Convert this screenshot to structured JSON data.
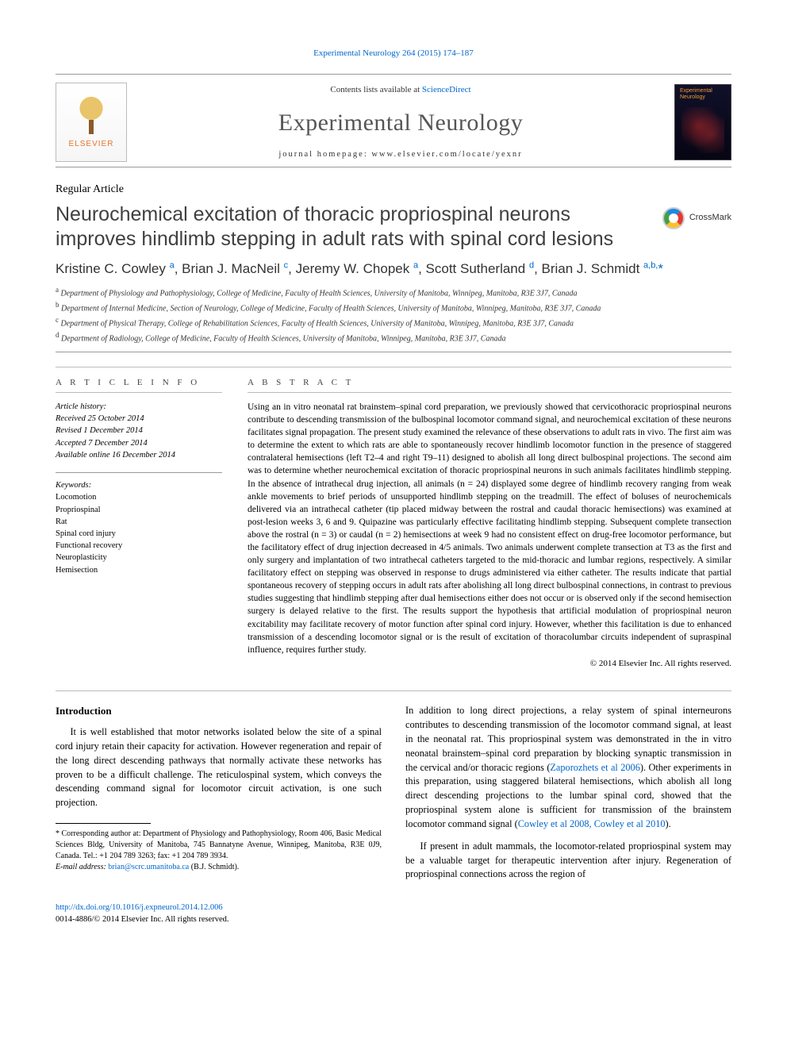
{
  "runningHead": {
    "journalLink": "Experimental Neurology 264 (2015) 174–187",
    "journalUrl": "#"
  },
  "masthead": {
    "publisherWord": "ELSEVIER",
    "contentsPrefix": "Contents lists available at ",
    "contentsLink": "ScienceDirect",
    "journalName": "Experimental Neurology",
    "homepagePrefix": "journal homepage: ",
    "homepageUrl": "www.elsevier.com/locate/yexnr",
    "coverTitle": "Experimental Neurology"
  },
  "articleType": "Regular Article",
  "title": "Neurochemical excitation of thoracic propriospinal neurons improves hindlimb stepping in adult rats with spinal cord lesions",
  "crossmarkLabel": "CrossMark",
  "authorsHtml": "Kristine C. Cowley <sup>a</sup>, Brian J. MacNeil <sup>c</sup>, Jeremy W. Chopek <sup>a</sup>, Scott Sutherland <sup>d</sup>, Brian J. Schmidt <sup>a,b,</sup><span class='star'>*</span>",
  "affiliations": {
    "a": "Department of Physiology and Pathophysiology, College of Medicine, Faculty of Health Sciences, University of Manitoba, Winnipeg, Manitoba, R3E 3J7, Canada",
    "b": "Department of Internal Medicine, Section of Neurology, College of Medicine, Faculty of Health Sciences, University of Manitoba, Winnipeg, Manitoba, R3E 3J7, Canada",
    "c": "Department of Physical Therapy, College of Rehabilitation Sciences, Faculty of Health Sciences, University of Manitoba, Winnipeg, Manitoba, R3E 3J7, Canada",
    "d": "Department of Radiology, College of Medicine, Faculty of Health Sciences, University of Manitoba, Winnipeg, Manitoba, R3E 3J7, Canada"
  },
  "articleInfo": {
    "headLeft": "A R T I C L E   I N F O",
    "historyLabel": "Article history:",
    "received": "Received 25 October 2014",
    "revised": "Revised 1 December 2014",
    "accepted": "Accepted 7 December 2014",
    "online": "Available online 16 December 2014",
    "keywordsLabel": "Keywords:",
    "keywords": [
      "Locomotion",
      "Propriospinal",
      "Rat",
      "Spinal cord injury",
      "Functional recovery",
      "Neuroplasticity",
      "Hemisection"
    ]
  },
  "abstract": {
    "head": "A B S T R A C T",
    "text": "Using an in vitro neonatal rat brainstem–spinal cord preparation, we previously showed that cervicothoracic propriospinal neurons contribute to descending transmission of the bulbospinal locomotor command signal, and neurochemical excitation of these neurons facilitates signal propagation. The present study examined the relevance of these observations to adult rats in vivo. The first aim was to determine the extent to which rats are able to spontaneously recover hindlimb locomotor function in the presence of staggered contralateral hemisections (left T2–4 and right T9–11) designed to abolish all long direct bulbospinal projections. The second aim was to determine whether neurochemical excitation of thoracic propriospinal neurons in such animals facilitates hindlimb stepping. In the absence of intrathecal drug injection, all animals (n = 24) displayed some degree of hindlimb recovery ranging from weak ankle movements to brief periods of unsupported hindlimb stepping on the treadmill. The effect of boluses of neurochemicals delivered via an intrathecal catheter (tip placed midway between the rostral and caudal thoracic hemisections) was examined at post-lesion weeks 3, 6 and 9. Quipazine was particularly effective facilitating hindlimb stepping. Subsequent complete transection above the rostral (n = 3) or caudal (n = 2) hemisections at week 9 had no consistent effect on drug-free locomotor performance, but the facilitatory effect of drug injection decreased in 4/5 animals. Two animals underwent complete transection at T3 as the first and only surgery and implantation of two intrathecal catheters targeted to the mid-thoracic and lumbar regions, respectively. A similar facilitatory effect on stepping was observed in response to drugs administered via either catheter. The results indicate that partial spontaneous recovery of stepping occurs in adult rats after abolishing all long direct bulbospinal connections, in contrast to previous studies suggesting that hindlimb stepping after dual hemisections either does not occur or is observed only if the second hemisection surgery is delayed relative to the first. The results support the hypothesis that artificial modulation of propriospinal neuron excitability may facilitate recovery of motor function after spinal cord injury. However, whether this facilitation is due to enhanced transmission of a descending locomotor signal or is the result of excitation of thoracolumbar circuits independent of supraspinal influence, requires further study.",
    "copyright": "© 2014 Elsevier Inc. All rights reserved."
  },
  "body": {
    "introHead": "Introduction",
    "p1": "It is well established that motor networks isolated below the site of a spinal cord injury retain their capacity for activation. However regeneration and repair of the long direct descending pathways that normally activate these networks has proven to be a difficult challenge. The reticulospinal system, which conveys the descending command signal for locomotor circuit activation, is one such projection.",
    "p2_a": "In addition to long direct projections, a relay system of spinal interneurons contributes to descending transmission of the locomotor command signal, at least in the neonatal rat. This propriospinal system was demonstrated in the in vitro neonatal brainstem–spinal cord preparation by blocking synaptic transmission in the cervical and/or thoracic regions (",
    "p2_ref1": "Zaporozhets et al 2006",
    "p2_b": "). Other experiments in this preparation, using staggered bilateral hemisections, which abolish all long direct descending projections to the lumbar spinal cord, showed that the propriospinal system alone is sufficient for transmission of the brainstem locomotor command signal (",
    "p2_ref2": "Cowley et al 2008, Cowley et al 2010",
    "p2_c": ").",
    "p3": "If present in adult mammals, the locomotor-related propriospinal system may be a valuable target for therapeutic intervention after injury. Regeneration of propriospinal connections across the region of"
  },
  "footnotes": {
    "corrLine": "* Corresponding author at: Department of Physiology and Pathophysiology, Room 406, Basic Medical Sciences Bldg, University of Manitoba, 745 Bannatyne Avenue, Winnipeg, Manitoba, R3E 0J9, Canada. Tel.: +1 204 789 3263; fax: +1 204 789 3934.",
    "emailLabel": "E-mail address: ",
    "email": "brian@scrc.umanitoba.ca",
    "emailSuffix": " (B.J. Schmidt)."
  },
  "footer": {
    "doi": "http://dx.doi.org/10.1016/j.expneurol.2014.12.006",
    "issn": "0014-4886/© 2014 Elsevier Inc. All rights reserved."
  },
  "colors": {
    "link": "#0066cc",
    "titleGray": "#404040",
    "logoOrange": "#e9742b"
  }
}
